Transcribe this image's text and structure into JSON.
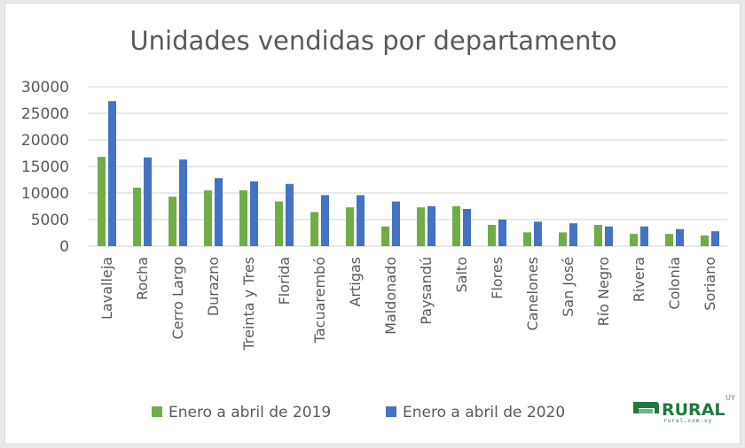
{
  "chart_data": {
    "type": "bar",
    "title": "Unidades vendidas por departamento",
    "xlabel": "",
    "ylabel": "",
    "ylim": [
      0,
      30000
    ],
    "yticks": [
      "0",
      "5000",
      "10000",
      "15000",
      "20000",
      "25000",
      "30000"
    ],
    "ytick_values": [
      0,
      5000,
      10000,
      15000,
      20000,
      25000,
      30000
    ],
    "grid": true,
    "legend_position": "bottom",
    "categories": [
      "Lavalleja",
      "Rocha",
      "Cerro Largo",
      "Durazno",
      "Treinta y Tres",
      "Florida",
      "Tacuarembó",
      "Artigas",
      "Maldonado",
      "Paysandú",
      "Salto",
      "Flores",
      "Canelones",
      "San José",
      "Río Negro",
      "Rivera",
      "Colonia",
      "Soriano"
    ],
    "series": [
      {
        "name": "Enero a abril de 2019",
        "color": "#70ad47",
        "values": [
          16800,
          11000,
          9300,
          10500,
          10500,
          8400,
          6400,
          7300,
          3700,
          7300,
          7500,
          4000,
          2600,
          2600,
          4000,
          2300,
          2300,
          2000
        ]
      },
      {
        "name": "Enero a abril de 2020",
        "color": "#4472c4",
        "values": [
          27300,
          16700,
          16300,
          12800,
          12200,
          11700,
          9600,
          9600,
          8400,
          7500,
          7000,
          5000,
          4600,
          4300,
          3700,
          3700,
          3200,
          2800
        ]
      }
    ]
  },
  "logo": {
    "text": "RURAL",
    "superscript": "UY",
    "subtext": "rural.com.uy",
    "color": "#1e7a3c"
  }
}
